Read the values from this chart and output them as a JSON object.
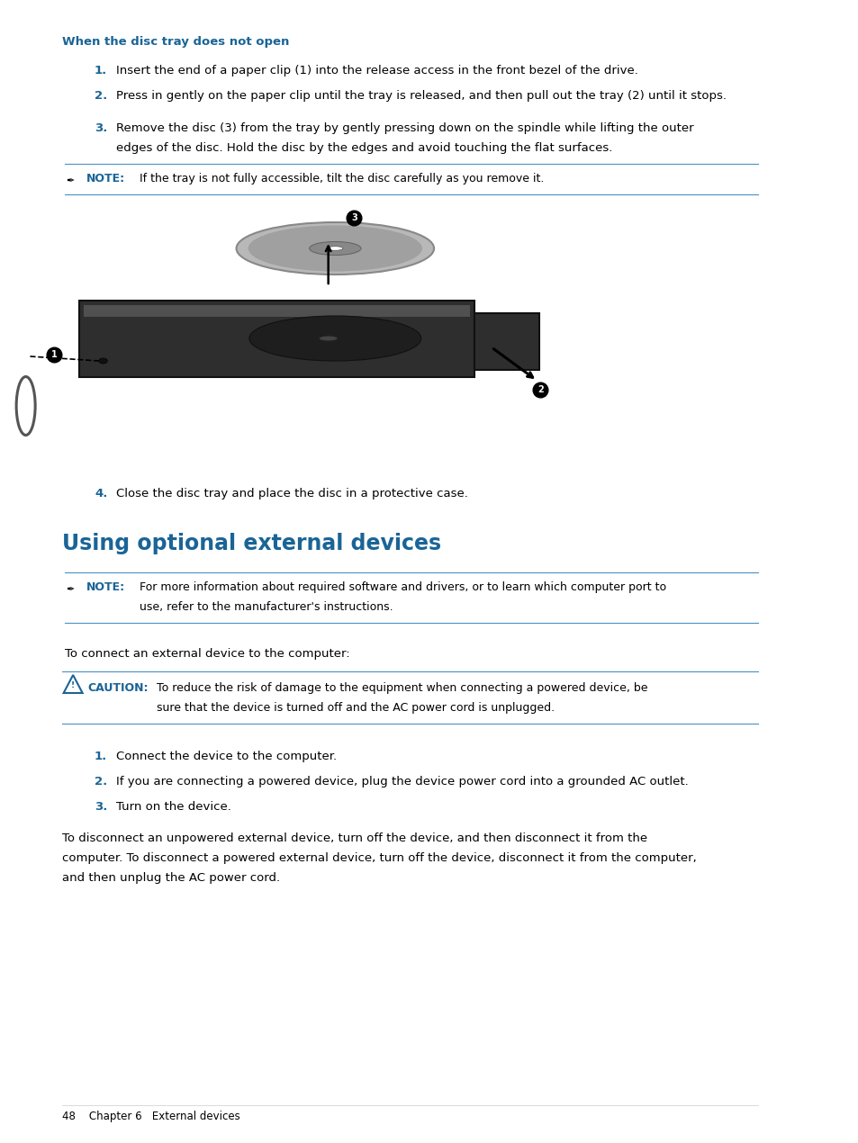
{
  "background_color": "#ffffff",
  "blue_color": "#1a6496",
  "section1_heading": "When the disc tray does not open",
  "step1_num": "1.",
  "step1_text": "Insert the end of a paper clip (1) into the release access in the front bezel of the drive.",
  "step2_num": "2.",
  "step2_text": "Press in gently on the paper clip until the tray is released, and then pull out the tray (2) until it stops.",
  "step3_num": "3.",
  "step3_text_1": "Remove the disc (3) from the tray by gently pressing down on the spindle while lifting the outer",
  "step3_text_2": "edges of the disc. Hold the disc by the edges and avoid touching the flat surfaces.",
  "note_label": "NOTE:",
  "note_text": "If the tray is not fully accessible, tilt the disc carefully as you remove it.",
  "step4_num": "4.",
  "step4_text": "Close the disc tray and place the disc in a protective case.",
  "section2_heading": "Using optional external devices",
  "note2_label": "NOTE:",
  "note2_text_1": "For more information about required software and drivers, or to learn which computer port to",
  "note2_text_2": "use, refer to the manufacturer's instructions.",
  "connect_text": "To connect an external device to the computer:",
  "caution_label": "CAUTION:",
  "caution_text_1": "To reduce the risk of damage to the equipment when connecting a powered device, be",
  "caution_text_2": "sure that the device is turned off and the AC power cord is unplugged.",
  "step_s1_num": "1.",
  "step_s1_text": "Connect the device to the computer.",
  "step_s2_num": "2.",
  "step_s2_text": "If you are connecting a powered device, plug the device power cord into a grounded AC outlet.",
  "step_s3_num": "3.",
  "step_s3_text": "Turn on the device.",
  "disconnect_text_1": "To disconnect an unpowered external device, turn off the device, and then disconnect it from the",
  "disconnect_text_2": "computer. To disconnect a powered external device, turn off the device, disconnect it from the computer,",
  "disconnect_text_3": "and then unplug the AC power cord.",
  "footer_text": "48    Chapter 6   External devices"
}
